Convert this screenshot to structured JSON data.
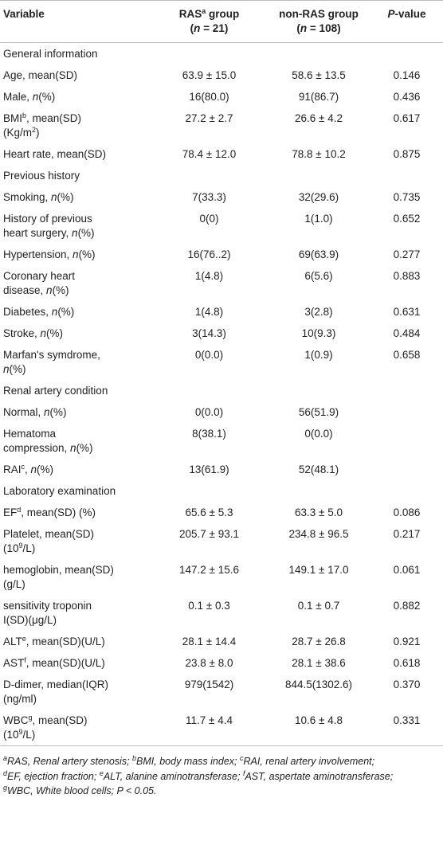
{
  "table": {
    "header": [
      [
        [
          "Variable"
        ]
      ],
      [
        [
          "RAS",
          {
            "text": "a",
            "style": "sup"
          },
          " group"
        ],
        [
          "(",
          {
            "text": "n",
            "style": "i"
          },
          " = 21)"
        ]
      ],
      [
        [
          "non-RAS group"
        ],
        [
          "(",
          {
            "text": "n",
            "style": "i"
          },
          " = 108)"
        ]
      ],
      [
        [
          {
            "text": "P",
            "style": "i"
          },
          "-value"
        ]
      ]
    ],
    "rows": [
      [
        [
          [
            "General information"
          ]
        ]
      ],
      [
        [
          [
            "Age, mean(SD)"
          ]
        ],
        [
          [
            "63.9 ± 15.0"
          ]
        ],
        [
          [
            "58.6 ± 13.5"
          ]
        ],
        [
          [
            "0.146"
          ]
        ]
      ],
      [
        [
          [
            "Male, ",
            {
              "text": "n",
              "style": "i"
            },
            "(%)"
          ]
        ],
        [
          [
            "16(80.0)"
          ]
        ],
        [
          [
            "91(86.7)"
          ]
        ],
        [
          [
            "0.436"
          ]
        ]
      ],
      [
        [
          [
            "BMI",
            {
              "text": "b",
              "style": "sup"
            },
            ", mean(SD)"
          ],
          [
            "(Kg/m",
            {
              "text": "2",
              "style": "sup"
            },
            ")"
          ]
        ],
        [
          [
            "27.2 ± 2.7"
          ]
        ],
        [
          [
            "26.6 ± 4.2"
          ]
        ],
        [
          [
            "0.617"
          ]
        ]
      ],
      [
        [
          [
            "Heart rate, mean(SD)"
          ]
        ],
        [
          [
            "78.4 ± 12.0"
          ]
        ],
        [
          [
            "78.8 ± 10.2"
          ]
        ],
        [
          [
            "0.875"
          ]
        ]
      ],
      [
        [
          [
            "Previous history"
          ]
        ]
      ],
      [
        [
          [
            "Smoking, ",
            {
              "text": "n",
              "style": "i"
            },
            "(%)"
          ]
        ],
        [
          [
            "7(33.3)"
          ]
        ],
        [
          [
            "32(29.6)"
          ]
        ],
        [
          [
            "0.735"
          ]
        ]
      ],
      [
        [
          [
            "History of previous"
          ],
          [
            "heart surgery, ",
            {
              "text": "n",
              "style": "i"
            },
            "(%)"
          ]
        ],
        [
          [
            "0(0)"
          ]
        ],
        [
          [
            "1(1.0)"
          ]
        ],
        [
          [
            "0.652"
          ]
        ]
      ],
      [
        [
          [
            "Hypertension, ",
            {
              "text": "n",
              "style": "i"
            },
            "(%)"
          ]
        ],
        [
          [
            "16(76..2)"
          ]
        ],
        [
          [
            "69(63.9)"
          ]
        ],
        [
          [
            "0.277"
          ]
        ]
      ],
      [
        [
          [
            "Coronary heart"
          ],
          [
            "disease, ",
            {
              "text": "n",
              "style": "i"
            },
            "(%)"
          ]
        ],
        [
          [
            "1(4.8)"
          ]
        ],
        [
          [
            "6(5.6)"
          ]
        ],
        [
          [
            "0.883"
          ]
        ]
      ],
      [
        [
          [
            "Diabetes, ",
            {
              "text": "n",
              "style": "i"
            },
            "(%)"
          ]
        ],
        [
          [
            "1(4.8)"
          ]
        ],
        [
          [
            "3(2.8)"
          ]
        ],
        [
          [
            "0.631"
          ]
        ]
      ],
      [
        [
          [
            "Stroke, ",
            {
              "text": "n",
              "style": "i"
            },
            "(%)"
          ]
        ],
        [
          [
            "3(14.3)"
          ]
        ],
        [
          [
            "10(9.3)"
          ]
        ],
        [
          [
            "0.484"
          ]
        ]
      ],
      [
        [
          [
            "Marfan's symdrome,"
          ],
          [
            {
              "text": "n",
              "style": "i"
            },
            "(%)"
          ]
        ],
        [
          [
            "0(0.0)"
          ]
        ],
        [
          [
            "1(0.9)"
          ]
        ],
        [
          [
            "0.658"
          ]
        ]
      ],
      [
        [
          [
            "Renal artery condition"
          ]
        ]
      ],
      [
        [
          [
            "Normal, ",
            {
              "text": "n",
              "style": "i"
            },
            "(%)"
          ]
        ],
        [
          [
            "0(0.0)"
          ]
        ],
        [
          [
            "56(51.9)"
          ]
        ],
        []
      ],
      [
        [
          [
            "Hematoma"
          ],
          [
            "compression, ",
            {
              "text": "n",
              "style": "i"
            },
            "(%)"
          ]
        ],
        [
          [
            "8(38.1)"
          ]
        ],
        [
          [
            "0(0.0)"
          ]
        ],
        []
      ],
      [
        [
          [
            "RAI",
            {
              "text": "c",
              "style": "sup"
            },
            ", ",
            {
              "text": "n",
              "style": "i"
            },
            "(%)"
          ]
        ],
        [
          [
            "13(61.9)"
          ]
        ],
        [
          [
            "52(48.1)"
          ]
        ],
        []
      ],
      [
        [
          [
            "Laboratory examination"
          ]
        ]
      ],
      [
        [
          [
            "EF",
            {
              "text": "d",
              "style": "sup"
            },
            ", mean(SD) (%)"
          ]
        ],
        [
          [
            "65.6 ± 5.3"
          ]
        ],
        [
          [
            "63.3 ± 5.0"
          ]
        ],
        [
          [
            "0.086"
          ]
        ]
      ],
      [
        [
          [
            "Platelet, mean(SD)"
          ],
          [
            "(10",
            {
              "text": "9",
              "style": "sup"
            },
            "/L)"
          ]
        ],
        [
          [
            "205.7 ± 93.1"
          ]
        ],
        [
          [
            "234.8 ± 96.5"
          ]
        ],
        [
          [
            "0.217"
          ]
        ]
      ],
      [
        [
          [
            "hemoglobin, mean(SD)"
          ],
          [
            "(g/L)"
          ]
        ],
        [
          [
            "147.2 ± 15.6"
          ]
        ],
        [
          [
            "149.1 ± 17.0"
          ]
        ],
        [
          [
            "0.061"
          ]
        ]
      ],
      [
        [
          [
            "sensitivity troponin"
          ],
          [
            "I(SD)(μg/L)"
          ]
        ],
        [
          [
            "0.1 ± 0.3"
          ]
        ],
        [
          [
            "0.1 ± 0.7"
          ]
        ],
        [
          [
            "0.882"
          ]
        ]
      ],
      [
        [
          [
            "ALT",
            {
              "text": "e",
              "style": "sup"
            },
            ", mean(SD)(U/L)"
          ]
        ],
        [
          [
            "28.1 ± 14.4"
          ]
        ],
        [
          [
            "28.7 ± 26.8"
          ]
        ],
        [
          [
            "0.921"
          ]
        ]
      ],
      [
        [
          [
            "AST",
            {
              "text": "f",
              "style": "sup"
            },
            ", mean(SD)(U/L)"
          ]
        ],
        [
          [
            "23.8 ± 8.0"
          ]
        ],
        [
          [
            "28.1 ± 38.6"
          ]
        ],
        [
          [
            "0.618"
          ]
        ]
      ],
      [
        [
          [
            "D-dimer, median(IQR)"
          ],
          [
            "(ng/ml)"
          ]
        ],
        [
          [
            "979(1542)"
          ]
        ],
        [
          [
            "844.5(1302.6)"
          ]
        ],
        [
          [
            "0.370"
          ]
        ]
      ],
      [
        [
          [
            "WBC",
            {
              "text": "g",
              "style": "sup"
            },
            ", mean(SD)"
          ],
          [
            "(10",
            {
              "text": "9",
              "style": "sup"
            },
            "/L)"
          ]
        ],
        [
          [
            "11.7 ± 4.4"
          ]
        ],
        [
          [
            "10.6 ± 4.8"
          ]
        ],
        [
          [
            "0.331"
          ]
        ]
      ]
    ],
    "footnote": [
      [
        {
          "text": "a",
          "style": "sup"
        },
        "RAS, Renal artery stenosis; ",
        {
          "text": "b",
          "style": "sup"
        },
        "BMI, body mass index; ",
        {
          "text": "c",
          "style": "sup"
        },
        "RAI, renal artery involvement;"
      ],
      [
        {
          "text": "d",
          "style": "sup"
        },
        "EF, ejection fraction; ",
        {
          "text": "e",
          "style": "sup"
        },
        "ALT, alanine aminotransferase; ",
        {
          "text": "f",
          "style": "sup"
        },
        "AST, aspertate aminotransferase;"
      ],
      [
        {
          "text": "g",
          "style": "sup"
        },
        "WBC, White blood cells; P < 0.05."
      ]
    ]
  }
}
